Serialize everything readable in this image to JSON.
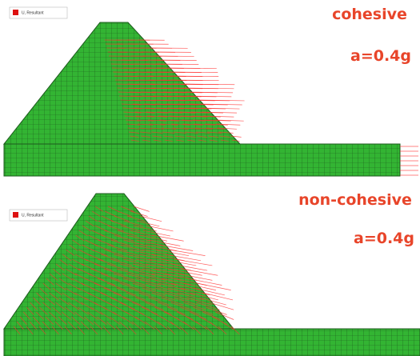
{
  "panels": [
    {
      "legend": "U, Resultant",
      "label": "cohesive",
      "acceleration": "a=0.4g"
    },
    {
      "legend": "U, Resultant",
      "label": "non-cohesive",
      "acceleration": "a=0.4g"
    }
  ]
}
